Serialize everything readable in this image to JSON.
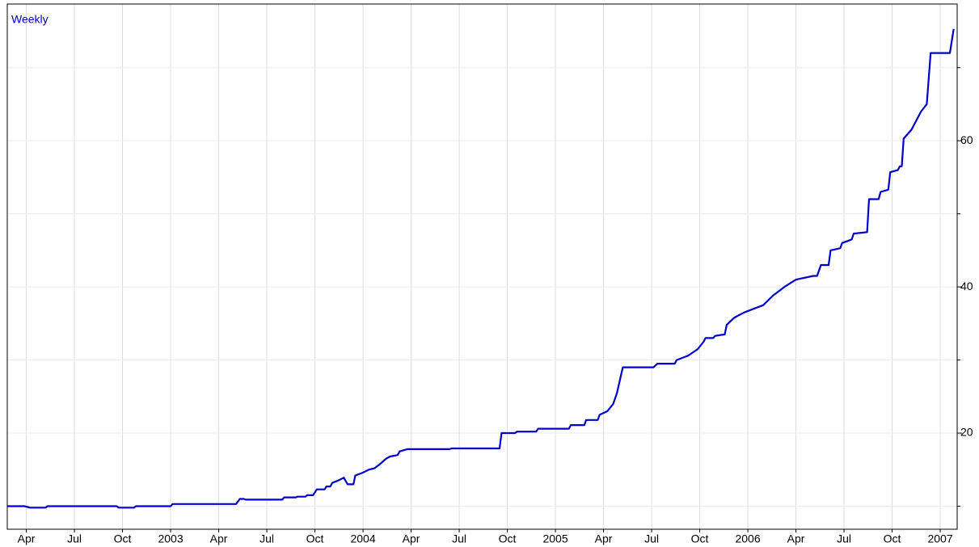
{
  "chart_data": {
    "type": "line",
    "label": "Weekly",
    "series": [
      {
        "name": "Weekly",
        "color": "#0000cc",
        "x": [
          2002.151,
          2002.24,
          2002.27,
          2002.35,
          2002.36,
          2002.72,
          2002.73,
          2002.81,
          2002.82,
          2003.0,
          2003.01,
          2003.34,
          2003.36,
          2003.38,
          2003.39,
          2003.58,
          2003.59,
          2003.65,
          2003.66,
          2003.7,
          2003.71,
          2003.74,
          2003.76,
          2003.8,
          2003.81,
          2003.83,
          2003.84,
          2003.87,
          2003.9,
          2003.92,
          2003.95,
          2003.96,
          2004.0,
          2004.03,
          2004.06,
          2004.09,
          2004.12,
          2004.14,
          2004.18,
          2004.19,
          2004.23,
          2004.26,
          2004.45,
          2004.46,
          2004.71,
          2004.72,
          2004.79,
          2004.8,
          2004.9,
          2004.91,
          2005.07,
          2005.08,
          2005.15,
          2005.16,
          2005.22,
          2005.23,
          2005.27,
          2005.3,
          2005.32,
          2005.35,
          2005.51,
          2005.53,
          2005.62,
          2005.63,
          2005.69,
          2005.74,
          2005.77,
          2005.78,
          2005.82,
          2005.83,
          2005.88,
          2005.89,
          2005.93,
          2005.98,
          2006.03,
          2006.08,
          2006.13,
          2006.19,
          2006.25,
          2006.34,
          2006.36,
          2006.38,
          2006.42,
          2006.43,
          2006.48,
          2006.49,
          2006.54,
          2006.55,
          2006.62,
          2006.63,
          2006.68,
          2006.69,
          2006.73,
          2006.74,
          2006.78,
          2006.79,
          2006.8,
          2006.81,
          2006.85,
          2006.9,
          2006.93,
          2006.95,
          2007.05,
          2007.07
        ],
        "values": [
          10.0,
          10.0,
          9.8,
          9.8,
          10.0,
          10.0,
          9.8,
          9.8,
          10.0,
          10.0,
          10.3,
          10.3,
          11.0,
          11.0,
          10.9,
          10.9,
          11.2,
          11.2,
          11.3,
          11.3,
          11.5,
          11.5,
          12.3,
          12.3,
          12.7,
          12.7,
          13.2,
          13.5,
          13.9,
          13.0,
          13.0,
          14.2,
          14.6,
          15.0,
          15.2,
          15.8,
          16.5,
          16.8,
          17.0,
          17.5,
          17.8,
          17.8,
          17.8,
          17.9,
          17.9,
          20.0,
          20.0,
          20.2,
          20.2,
          20.6,
          20.6,
          21.1,
          21.1,
          21.8,
          21.8,
          22.5,
          23.0,
          24.0,
          25.5,
          29.0,
          29.0,
          29.5,
          29.5,
          30.0,
          30.6,
          31.5,
          32.5,
          33.0,
          33.0,
          33.3,
          33.5,
          34.8,
          35.8,
          36.5,
          37.0,
          37.5,
          38.8,
          40.0,
          41.0,
          41.5,
          41.5,
          43.0,
          43.0,
          45.0,
          45.3,
          46.0,
          46.5,
          47.3,
          47.5,
          52.0,
          52.0,
          53.0,
          53.3,
          55.7,
          56.0,
          56.5,
          56.5,
          60.3,
          61.5,
          64.0,
          65.0,
          72.0,
          72.0,
          75.3
        ]
      }
    ],
    "xlim": [
      2002.151,
      2007.088
    ],
    "xticks": [
      {
        "value": 2002.25,
        "label": "Apr"
      },
      {
        "value": 2002.5,
        "label": "Jul"
      },
      {
        "value": 2002.75,
        "label": "Oct"
      },
      {
        "value": 2003,
        "label": "2003"
      },
      {
        "value": 2003.25,
        "label": "Apr"
      },
      {
        "value": 2003.5,
        "label": "Jul"
      },
      {
        "value": 2003.75,
        "label": "Oct"
      },
      {
        "value": 2004,
        "label": "2004"
      },
      {
        "value": 2004.25,
        "label": "Apr"
      },
      {
        "value": 2004.5,
        "label": "Jul"
      },
      {
        "value": 2004.75,
        "label": "Oct"
      },
      {
        "value": 2005,
        "label": "2005"
      },
      {
        "value": 2005.25,
        "label": "Apr"
      },
      {
        "value": 2005.5,
        "label": "Jul"
      },
      {
        "value": 2005.75,
        "label": "Oct"
      },
      {
        "value": 2006,
        "label": "2006"
      },
      {
        "value": 2006.25,
        "label": "Apr"
      },
      {
        "value": 2006.5,
        "label": "Jul"
      },
      {
        "value": 2006.75,
        "label": "Oct"
      },
      {
        "value": 2007,
        "label": "2007"
      }
    ],
    "ylim": [
      6.85,
      78.7
    ],
    "yticks": [
      20,
      40,
      60
    ],
    "minor_yticks": [
      10,
      30,
      50,
      70
    ],
    "grid": true,
    "y_axis_side": "right"
  }
}
